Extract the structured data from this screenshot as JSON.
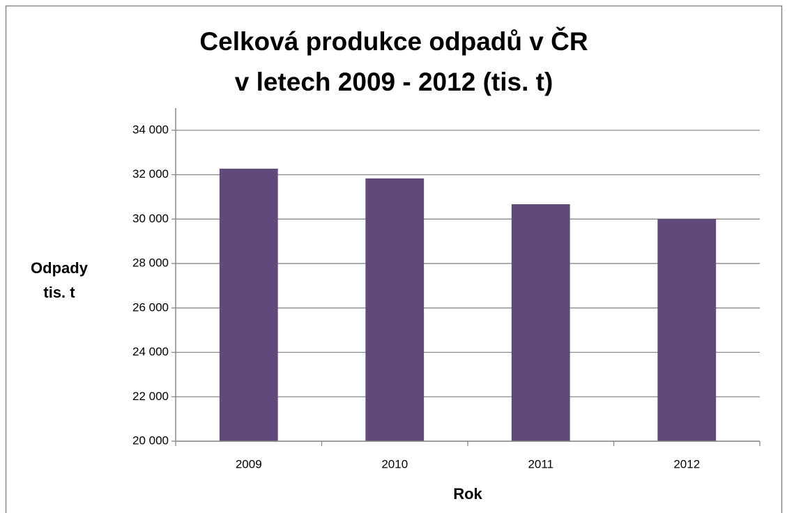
{
  "chart_data": {
    "type": "bar",
    "title": [
      "Celková produkce odpadů v ČR",
      "v letech 2009 - 2012 (tis. t)"
    ],
    "ylabel": [
      "Odpady",
      "tis. t"
    ],
    "xlabel": "Rok",
    "categories": [
      "2009",
      "2010",
      "2011",
      "2012"
    ],
    "values": [
      32270,
      31830,
      30670,
      30010
    ],
    "color": "#604a7b",
    "ylim": [
      20000,
      35000
    ],
    "yticks": [
      {
        "value": 20000,
        "label": "20 000"
      },
      {
        "value": 22000,
        "label": "22 000"
      },
      {
        "value": 24000,
        "label": "24 000"
      },
      {
        "value": 26000,
        "label": "26 000"
      },
      {
        "value": 28000,
        "label": "28 000"
      },
      {
        "value": 30000,
        "label": "30 000"
      },
      {
        "value": 32000,
        "label": "32 000"
      },
      {
        "value": 34000,
        "label": "34 000"
      }
    ],
    "grid": true
  }
}
